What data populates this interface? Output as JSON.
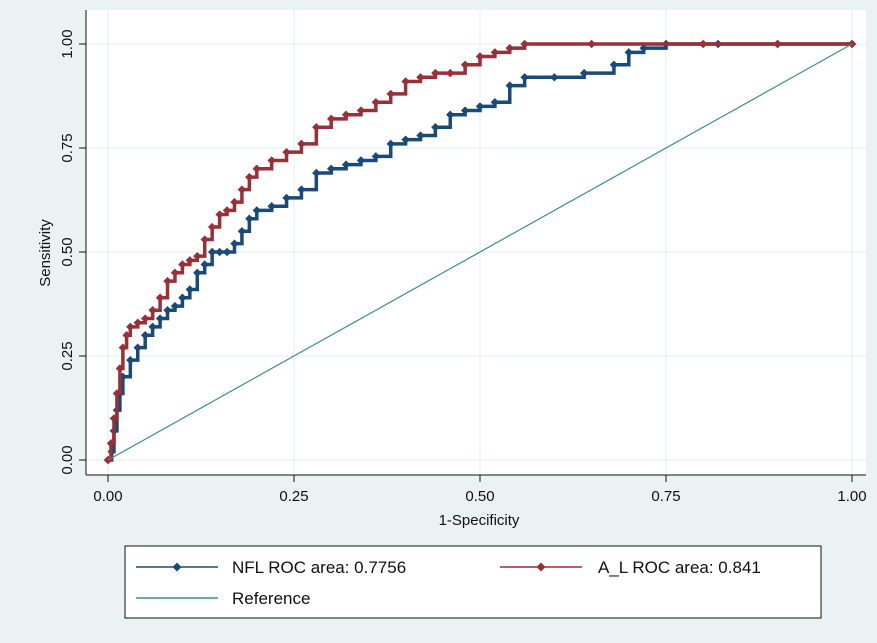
{
  "chart_data": {
    "type": "line",
    "title": "",
    "xlabel": "1-Specificity",
    "ylabel": "Sensitivity",
    "xlim": [
      0,
      1
    ],
    "ylim": [
      0,
      1
    ],
    "x_ticks": [
      "0.00",
      "0.25",
      "0.50",
      "0.75",
      "1.00"
    ],
    "y_ticks": [
      "0.00",
      "0.25",
      "0.50",
      "0.75",
      "1.00"
    ],
    "grid": true,
    "legend_position": "bottom",
    "series": [
      {
        "name": "NFL ROC area: 0.7756",
        "color": "#1a4a7a",
        "marker": "diamond",
        "points": [
          [
            0,
            0
          ],
          [
            0.005,
            0.02
          ],
          [
            0.008,
            0.07
          ],
          [
            0.012,
            0.12
          ],
          [
            0.016,
            0.16
          ],
          [
            0.02,
            0.2
          ],
          [
            0.03,
            0.24
          ],
          [
            0.04,
            0.27
          ],
          [
            0.05,
            0.3
          ],
          [
            0.06,
            0.32
          ],
          [
            0.07,
            0.34
          ],
          [
            0.08,
            0.36
          ],
          [
            0.09,
            0.37
          ],
          [
            0.1,
            0.39
          ],
          [
            0.11,
            0.41
          ],
          [
            0.12,
            0.45
          ],
          [
            0.13,
            0.47
          ],
          [
            0.14,
            0.5
          ],
          [
            0.15,
            0.5
          ],
          [
            0.16,
            0.5
          ],
          [
            0.17,
            0.52
          ],
          [
            0.18,
            0.55
          ],
          [
            0.19,
            0.58
          ],
          [
            0.2,
            0.6
          ],
          [
            0.22,
            0.61
          ],
          [
            0.24,
            0.63
          ],
          [
            0.26,
            0.65
          ],
          [
            0.28,
            0.69
          ],
          [
            0.3,
            0.7
          ],
          [
            0.32,
            0.71
          ],
          [
            0.34,
            0.72
          ],
          [
            0.36,
            0.73
          ],
          [
            0.38,
            0.76
          ],
          [
            0.4,
            0.77
          ],
          [
            0.42,
            0.78
          ],
          [
            0.44,
            0.8
          ],
          [
            0.46,
            0.83
          ],
          [
            0.48,
            0.84
          ],
          [
            0.5,
            0.85
          ],
          [
            0.52,
            0.86
          ],
          [
            0.54,
            0.9
          ],
          [
            0.56,
            0.92
          ],
          [
            0.6,
            0.92
          ],
          [
            0.64,
            0.93
          ],
          [
            0.68,
            0.95
          ],
          [
            0.7,
            0.98
          ],
          [
            0.72,
            0.99
          ],
          [
            0.75,
            1
          ],
          [
            0.82,
            1
          ],
          [
            0.9,
            1
          ],
          [
            1,
            1
          ]
        ]
      },
      {
        "name": "A_L ROC area: 0.841",
        "color": "#9b2f37",
        "marker": "diamond",
        "points": [
          [
            0,
            0
          ],
          [
            0.004,
            0.04
          ],
          [
            0.008,
            0.1
          ],
          [
            0.012,
            0.16
          ],
          [
            0.016,
            0.22
          ],
          [
            0.02,
            0.27
          ],
          [
            0.025,
            0.3
          ],
          [
            0.03,
            0.32
          ],
          [
            0.04,
            0.33
          ],
          [
            0.05,
            0.34
          ],
          [
            0.06,
            0.36
          ],
          [
            0.07,
            0.39
          ],
          [
            0.08,
            0.43
          ],
          [
            0.09,
            0.45
          ],
          [
            0.1,
            0.47
          ],
          [
            0.11,
            0.48
          ],
          [
            0.12,
            0.49
          ],
          [
            0.13,
            0.53
          ],
          [
            0.14,
            0.56
          ],
          [
            0.15,
            0.59
          ],
          [
            0.16,
            0.6
          ],
          [
            0.17,
            0.62
          ],
          [
            0.18,
            0.65
          ],
          [
            0.19,
            0.68
          ],
          [
            0.2,
            0.7
          ],
          [
            0.22,
            0.72
          ],
          [
            0.24,
            0.74
          ],
          [
            0.26,
            0.76
          ],
          [
            0.28,
            0.8
          ],
          [
            0.3,
            0.82
          ],
          [
            0.32,
            0.83
          ],
          [
            0.34,
            0.84
          ],
          [
            0.36,
            0.86
          ],
          [
            0.38,
            0.88
          ],
          [
            0.4,
            0.91
          ],
          [
            0.42,
            0.92
          ],
          [
            0.44,
            0.93
          ],
          [
            0.46,
            0.93
          ],
          [
            0.48,
            0.95
          ],
          [
            0.5,
            0.97
          ],
          [
            0.52,
            0.98
          ],
          [
            0.54,
            0.99
          ],
          [
            0.56,
            1
          ],
          [
            0.65,
            1
          ],
          [
            0.8,
            1
          ],
          [
            0.9,
            1
          ],
          [
            1,
            1
          ]
        ]
      },
      {
        "name": "Reference",
        "color": "#3f8f82",
        "marker": "none",
        "points": [
          [
            0,
            0
          ],
          [
            1,
            1
          ]
        ]
      }
    ]
  }
}
